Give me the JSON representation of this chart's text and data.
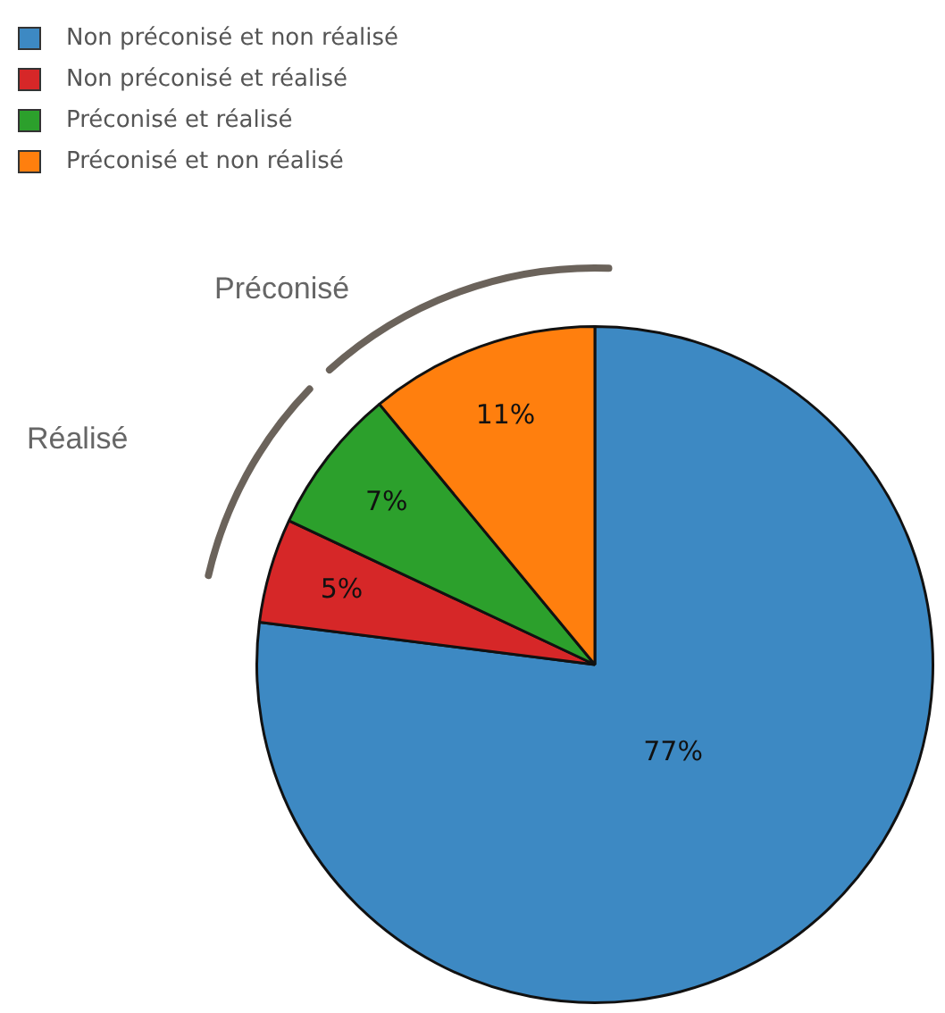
{
  "chart_data": {
    "type": "pie",
    "categories": [
      "Non préconisé et non réalisé",
      "Non préconisé et réalisé",
      "Préconisé et réalisé",
      "Préconisé et non réalisé"
    ],
    "values": [
      77,
      5,
      7,
      11
    ],
    "colors": [
      "#3d89c3",
      "#d62728",
      "#2ca02c",
      "#ff7f0e"
    ],
    "value_labels": [
      "77%",
      "5%",
      "7%",
      "11%"
    ],
    "legend": "top left",
    "annotations": [
      "Préconisé",
      "Réalisé"
    ]
  }
}
